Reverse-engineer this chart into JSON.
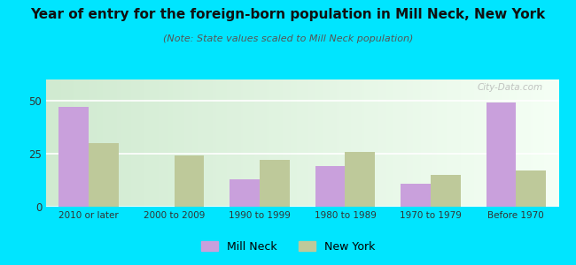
{
  "title": "Year of entry for the foreign-born population in Mill Neck, New York",
  "subtitle": "(Note: State values scaled to Mill Neck population)",
  "categories": [
    "2010 or later",
    "2000 to 2009",
    "1990 to 1999",
    "1980 to 1989",
    "1970 to 1979",
    "Before 1970"
  ],
  "mill_neck": [
    47,
    0,
    13,
    19,
    11,
    49
  ],
  "new_york": [
    30,
    24,
    22,
    26,
    15,
    17
  ],
  "mill_neck_color": "#c9a0dc",
  "new_york_color": "#bec99a",
  "background_color": "#00e5ff",
  "ylim": [
    0,
    60
  ],
  "yticks": [
    0,
    25,
    50
  ],
  "bar_width": 0.35,
  "title_fontsize": 11,
  "subtitle_fontsize": 8,
  "legend_labels": [
    "Mill Neck",
    "New York"
  ],
  "watermark": "City-Data.com"
}
